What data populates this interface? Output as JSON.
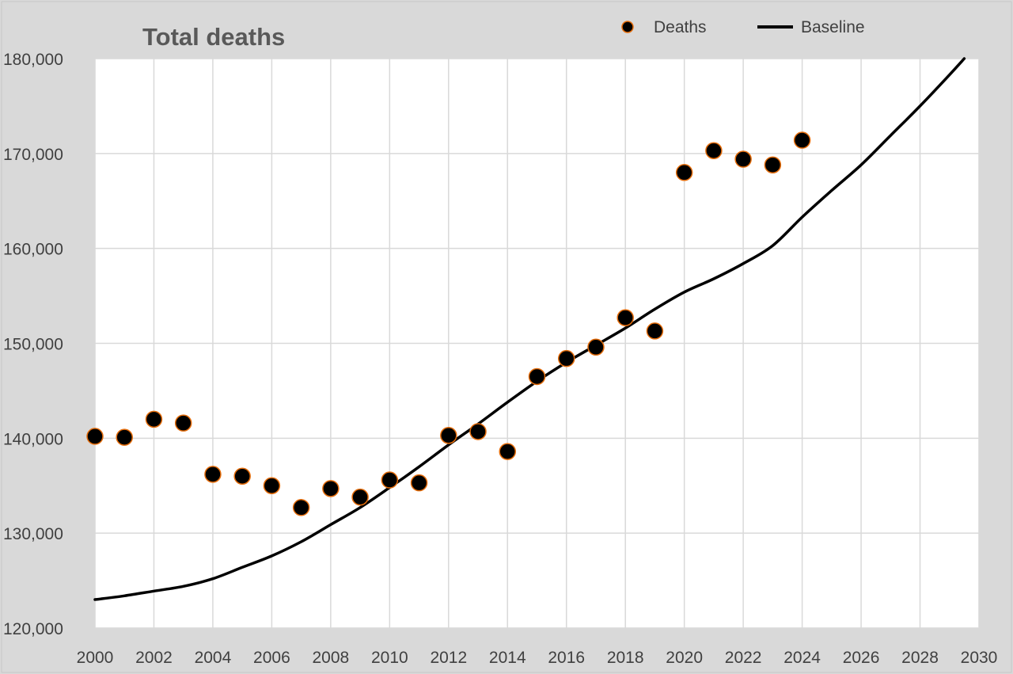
{
  "chart_data": {
    "type": "scatter",
    "title": "Total deaths",
    "xlabel": "",
    "ylabel": "",
    "xlim": [
      2000,
      2030
    ],
    "ylim": [
      120000,
      180000
    ],
    "x_ticks": [
      "2000",
      "2002",
      "2004",
      "2006",
      "2008",
      "2010",
      "2012",
      "2014",
      "2016",
      "2018",
      "2020",
      "2022",
      "2024",
      "2026",
      "2028",
      "2030"
    ],
    "y_ticks": [
      "120,000",
      "130,000",
      "140,000",
      "150,000",
      "160,000",
      "170,000",
      "180,000"
    ],
    "grid": true,
    "legend_position": "top-right",
    "series": [
      {
        "name": "Deaths",
        "kind": "scatter",
        "color": "#000000",
        "edge_color": "#e46c0a",
        "points": [
          [
            2000,
            140200
          ],
          [
            2001,
            140100
          ],
          [
            2002,
            142000
          ],
          [
            2003,
            141600
          ],
          [
            2004,
            136200
          ],
          [
            2005,
            136000
          ],
          [
            2006,
            135000
          ],
          [
            2007,
            132700
          ],
          [
            2008,
            134700
          ],
          [
            2009,
            133800
          ],
          [
            2010,
            135600
          ],
          [
            2011,
            135300
          ],
          [
            2012,
            140300
          ],
          [
            2013,
            140700
          ],
          [
            2014,
            138600
          ],
          [
            2015,
            146500
          ],
          [
            2016,
            148400
          ],
          [
            2017,
            149600
          ],
          [
            2018,
            152700
          ],
          [
            2019,
            151300
          ],
          [
            2020,
            168000
          ],
          [
            2021,
            170300
          ],
          [
            2022,
            169400
          ],
          [
            2023,
            168800
          ],
          [
            2024,
            171400
          ]
        ]
      },
      {
        "name": "Baseline",
        "kind": "line",
        "color": "#000000",
        "points": [
          [
            2000,
            123000
          ],
          [
            2001,
            123400
          ],
          [
            2002,
            123900
          ],
          [
            2003,
            124400
          ],
          [
            2004,
            125200
          ],
          [
            2005,
            126400
          ],
          [
            2006,
            127600
          ],
          [
            2007,
            129100
          ],
          [
            2008,
            130900
          ],
          [
            2009,
            132700
          ],
          [
            2010,
            134800
          ],
          [
            2011,
            137000
          ],
          [
            2012,
            139300
          ],
          [
            2013,
            141500
          ],
          [
            2014,
            143800
          ],
          [
            2015,
            146000
          ],
          [
            2016,
            148000
          ],
          [
            2017,
            149800
          ],
          [
            2018,
            151600
          ],
          [
            2019,
            153600
          ],
          [
            2020,
            155400
          ],
          [
            2021,
            156800
          ],
          [
            2022,
            158400
          ],
          [
            2023,
            160300
          ],
          [
            2024,
            163300
          ],
          [
            2025,
            166100
          ],
          [
            2026,
            168800
          ],
          [
            2027,
            171900
          ],
          [
            2028,
            175000
          ],
          [
            2029,
            178300
          ],
          [
            2029.5,
            180000
          ]
        ]
      }
    ]
  }
}
